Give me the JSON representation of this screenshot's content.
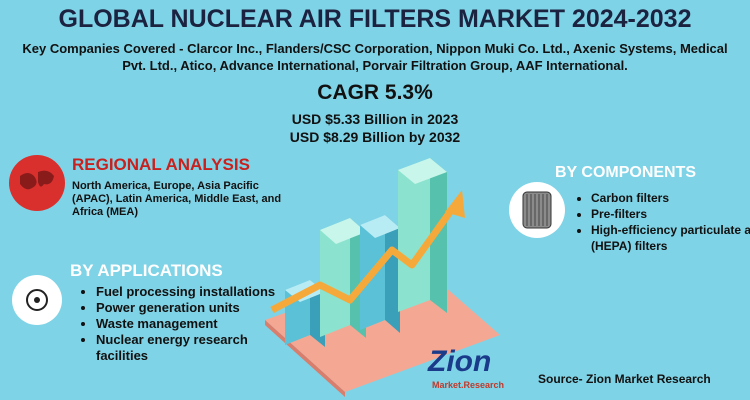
{
  "header": {
    "title": "GLOBAL NUCLEAR AIR FILTERS MARKET 2024-2032",
    "key_companies": "Key Companies Covered - Clarcor Inc., Flanders/CSC Corporation, Nippon Muki Co. Ltd., Axenic Systems, Medical Pvt. Ltd., Atico, Advance International, Porvair Filtration Group, AAF International."
  },
  "cagr": "CAGR 5.3%",
  "market_size": [
    "USD $5.33 Billion  in 2023",
    "USD $8.29 Billion  by 2032"
  ],
  "regional_analysis": {
    "title": "REGIONAL ANALYSIS",
    "text": "North America, Europe, Asia Pacific (APAC), Latin America, Middle East, and Africa (MEA)"
  },
  "applications": {
    "title": "BY APPLICATIONS",
    "items": [
      "Fuel processing installations",
      "Power generation units",
      "Waste management",
      "Nuclear energy research facilities"
    ]
  },
  "components": {
    "title": "BY COMPONENTS",
    "items": [
      "Carbon filters",
      "Pre-filters",
      "High-efficiency particulate air (HEPA) filters"
    ]
  },
  "logo": {
    "name": "Zion",
    "tagline": "Market.Research"
  },
  "source": "Source- Zion Market Research"
}
